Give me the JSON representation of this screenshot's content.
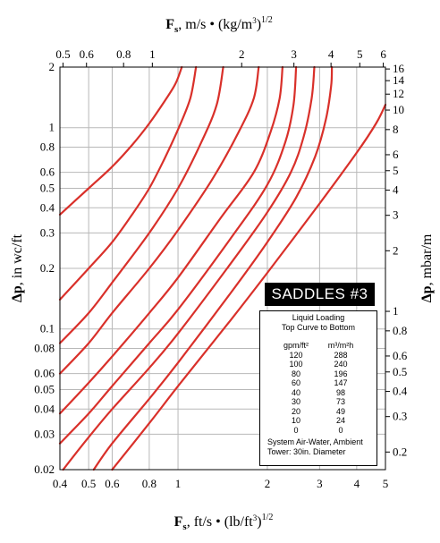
{
  "chart_data": {
    "type": "line",
    "title": "SADDLES #3",
    "xlabel": {
      "prefix": "F",
      "sub": "s",
      "rest": ", ft/s • (lb/ft",
      "sup3": "3",
      "close": ")",
      "sup": "1/2"
    },
    "x2label": {
      "prefix": "F",
      "sub": "s",
      "rest": ", m/s • (kg/m",
      "sup3": "3",
      "close": ")",
      "sup": "1/2"
    },
    "ylabel": {
      "prefix": "Δp",
      "rest": ", in wc/ft"
    },
    "y2label": {
      "prefix": "Δp",
      "rest": ", mbar/m"
    },
    "x_scale": "log",
    "y_scale": "log",
    "xlim": [
      0.4,
      5
    ],
    "ylim": [
      0.02,
      2
    ],
    "x_ticks": [
      "0.4",
      "0.5",
      "0.6",
      "0.8",
      "1",
      "2",
      "3",
      "4",
      "5"
    ],
    "x_tick_values": [
      0.4,
      0.5,
      0.6,
      0.8,
      1,
      2,
      3,
      4,
      5
    ],
    "y_ticks": [
      "0.02",
      "0.03",
      "0.04",
      "0.05",
      "0.06",
      "0.08",
      "0.1",
      "0.2",
      "0.3",
      "0.4",
      "0.5",
      "0.6",
      "0.8",
      "1",
      "2"
    ],
    "y_tick_values": [
      0.02,
      0.03,
      0.04,
      0.05,
      0.06,
      0.08,
      0.1,
      0.2,
      0.3,
      0.4,
      0.5,
      0.6,
      0.8,
      1,
      2
    ],
    "x2_ticks": [
      "0.5",
      "0.6",
      "0.8",
      "1",
      "2",
      "3",
      "4",
      "5",
      "6"
    ],
    "x2_tick_values": [
      0.5,
      0.6,
      0.8,
      1,
      2,
      3,
      4,
      5,
      6
    ],
    "y2_ticks": [
      "0.2",
      "0.3",
      "0.4",
      "0.5",
      "0.6",
      "0.8",
      "1",
      "2",
      "3",
      "4",
      "5",
      "6",
      "8",
      "10",
      "12",
      "14",
      "16"
    ],
    "y2_tick_values": [
      0.2,
      0.3,
      0.4,
      0.5,
      0.6,
      0.8,
      1,
      2,
      3,
      4,
      5,
      6,
      8,
      10,
      12,
      14,
      16
    ],
    "series": [
      {
        "name": "120",
        "points": [
          [
            0.4,
            0.37
          ],
          [
            0.5,
            0.5
          ],
          [
            0.6,
            0.64
          ],
          [
            0.7,
            0.82
          ],
          [
            0.8,
            1.05
          ],
          [
            0.9,
            1.35
          ],
          [
            0.98,
            1.65
          ],
          [
            1.03,
            2.0
          ]
        ]
      },
      {
        "name": "100",
        "points": [
          [
            0.4,
            0.14
          ],
          [
            0.5,
            0.2
          ],
          [
            0.6,
            0.27
          ],
          [
            0.7,
            0.37
          ],
          [
            0.8,
            0.5
          ],
          [
            0.9,
            0.7
          ],
          [
            1.0,
            0.98
          ],
          [
            1.1,
            1.4
          ],
          [
            1.15,
            2.0
          ]
        ]
      },
      {
        "name": "80",
        "points": [
          [
            0.4,
            0.085
          ],
          [
            0.5,
            0.12
          ],
          [
            0.6,
            0.17
          ],
          [
            0.8,
            0.3
          ],
          [
            1.0,
            0.5
          ],
          [
            1.2,
            0.85
          ],
          [
            1.35,
            1.3
          ],
          [
            1.42,
            2.0
          ]
        ]
      },
      {
        "name": "60",
        "points": [
          [
            0.4,
            0.06
          ],
          [
            0.5,
            0.085
          ],
          [
            0.6,
            0.12
          ],
          [
            0.8,
            0.2
          ],
          [
            1.0,
            0.31
          ],
          [
            1.3,
            0.55
          ],
          [
            1.6,
            0.95
          ],
          [
            1.8,
            1.4
          ],
          [
            1.87,
            2.0
          ]
        ]
      },
      {
        "name": "40",
        "points": [
          [
            0.4,
            0.038
          ],
          [
            0.5,
            0.054
          ],
          [
            0.6,
            0.073
          ],
          [
            0.8,
            0.12
          ],
          [
            1.0,
            0.18
          ],
          [
            1.4,
            0.36
          ],
          [
            1.8,
            0.6
          ],
          [
            2.05,
            0.95
          ],
          [
            2.2,
            1.4
          ],
          [
            2.25,
            2.0
          ]
        ]
      },
      {
        "name": "30",
        "points": [
          [
            0.4,
            0.027
          ],
          [
            0.5,
            0.038
          ],
          [
            0.6,
            0.052
          ],
          [
            0.8,
            0.085
          ],
          [
            1.0,
            0.125
          ],
          [
            1.5,
            0.28
          ],
          [
            2.0,
            0.52
          ],
          [
            2.3,
            0.85
          ],
          [
            2.45,
            1.3
          ],
          [
            2.5,
            2.0
          ]
        ]
      },
      {
        "name": "20",
        "points": [
          [
            0.41,
            0.02
          ],
          [
            0.5,
            0.029
          ],
          [
            0.6,
            0.04
          ],
          [
            0.8,
            0.064
          ],
          [
            1.0,
            0.095
          ],
          [
            1.5,
            0.21
          ],
          [
            2.0,
            0.38
          ],
          [
            2.4,
            0.6
          ],
          [
            2.65,
            0.9
          ],
          [
            2.82,
            1.4
          ],
          [
            2.88,
            2.0
          ]
        ]
      },
      {
        "name": "10",
        "points": [
          [
            0.52,
            0.02
          ],
          [
            0.6,
            0.027
          ],
          [
            0.8,
            0.045
          ],
          [
            1.0,
            0.068
          ],
          [
            1.5,
            0.15
          ],
          [
            2.0,
            0.27
          ],
          [
            2.5,
            0.45
          ],
          [
            2.9,
            0.72
          ],
          [
            3.15,
            1.1
          ],
          [
            3.28,
            1.6
          ],
          [
            3.3,
            2.0
          ]
        ]
      },
      {
        "name": "0",
        "points": [
          [
            0.6,
            0.02
          ],
          [
            0.8,
            0.034
          ],
          [
            1.0,
            0.052
          ],
          [
            1.5,
            0.11
          ],
          [
            2.0,
            0.19
          ],
          [
            3.0,
            0.42
          ],
          [
            4.0,
            0.75
          ],
          [
            4.65,
            1.05
          ],
          [
            5.0,
            1.3
          ]
        ]
      }
    ],
    "grid": true,
    "line_color": "#d9302a"
  },
  "legend": {
    "title_line1": "Liquid Loading",
    "title_line2": "Top Curve to Bottom",
    "col1_header": "gpm/ft²",
    "col2_header": "m³/m²h",
    "gpm": [
      "120",
      "100",
      "80",
      "60",
      "40",
      "30",
      "20",
      "10",
      "0"
    ],
    "m3": [
      "288",
      "240",
      "196",
      "147",
      "98",
      "73",
      "49",
      "24",
      "0"
    ],
    "footer1": "System Air-Water, Ambient",
    "footer2": "Tower: 30in. Diameter"
  }
}
